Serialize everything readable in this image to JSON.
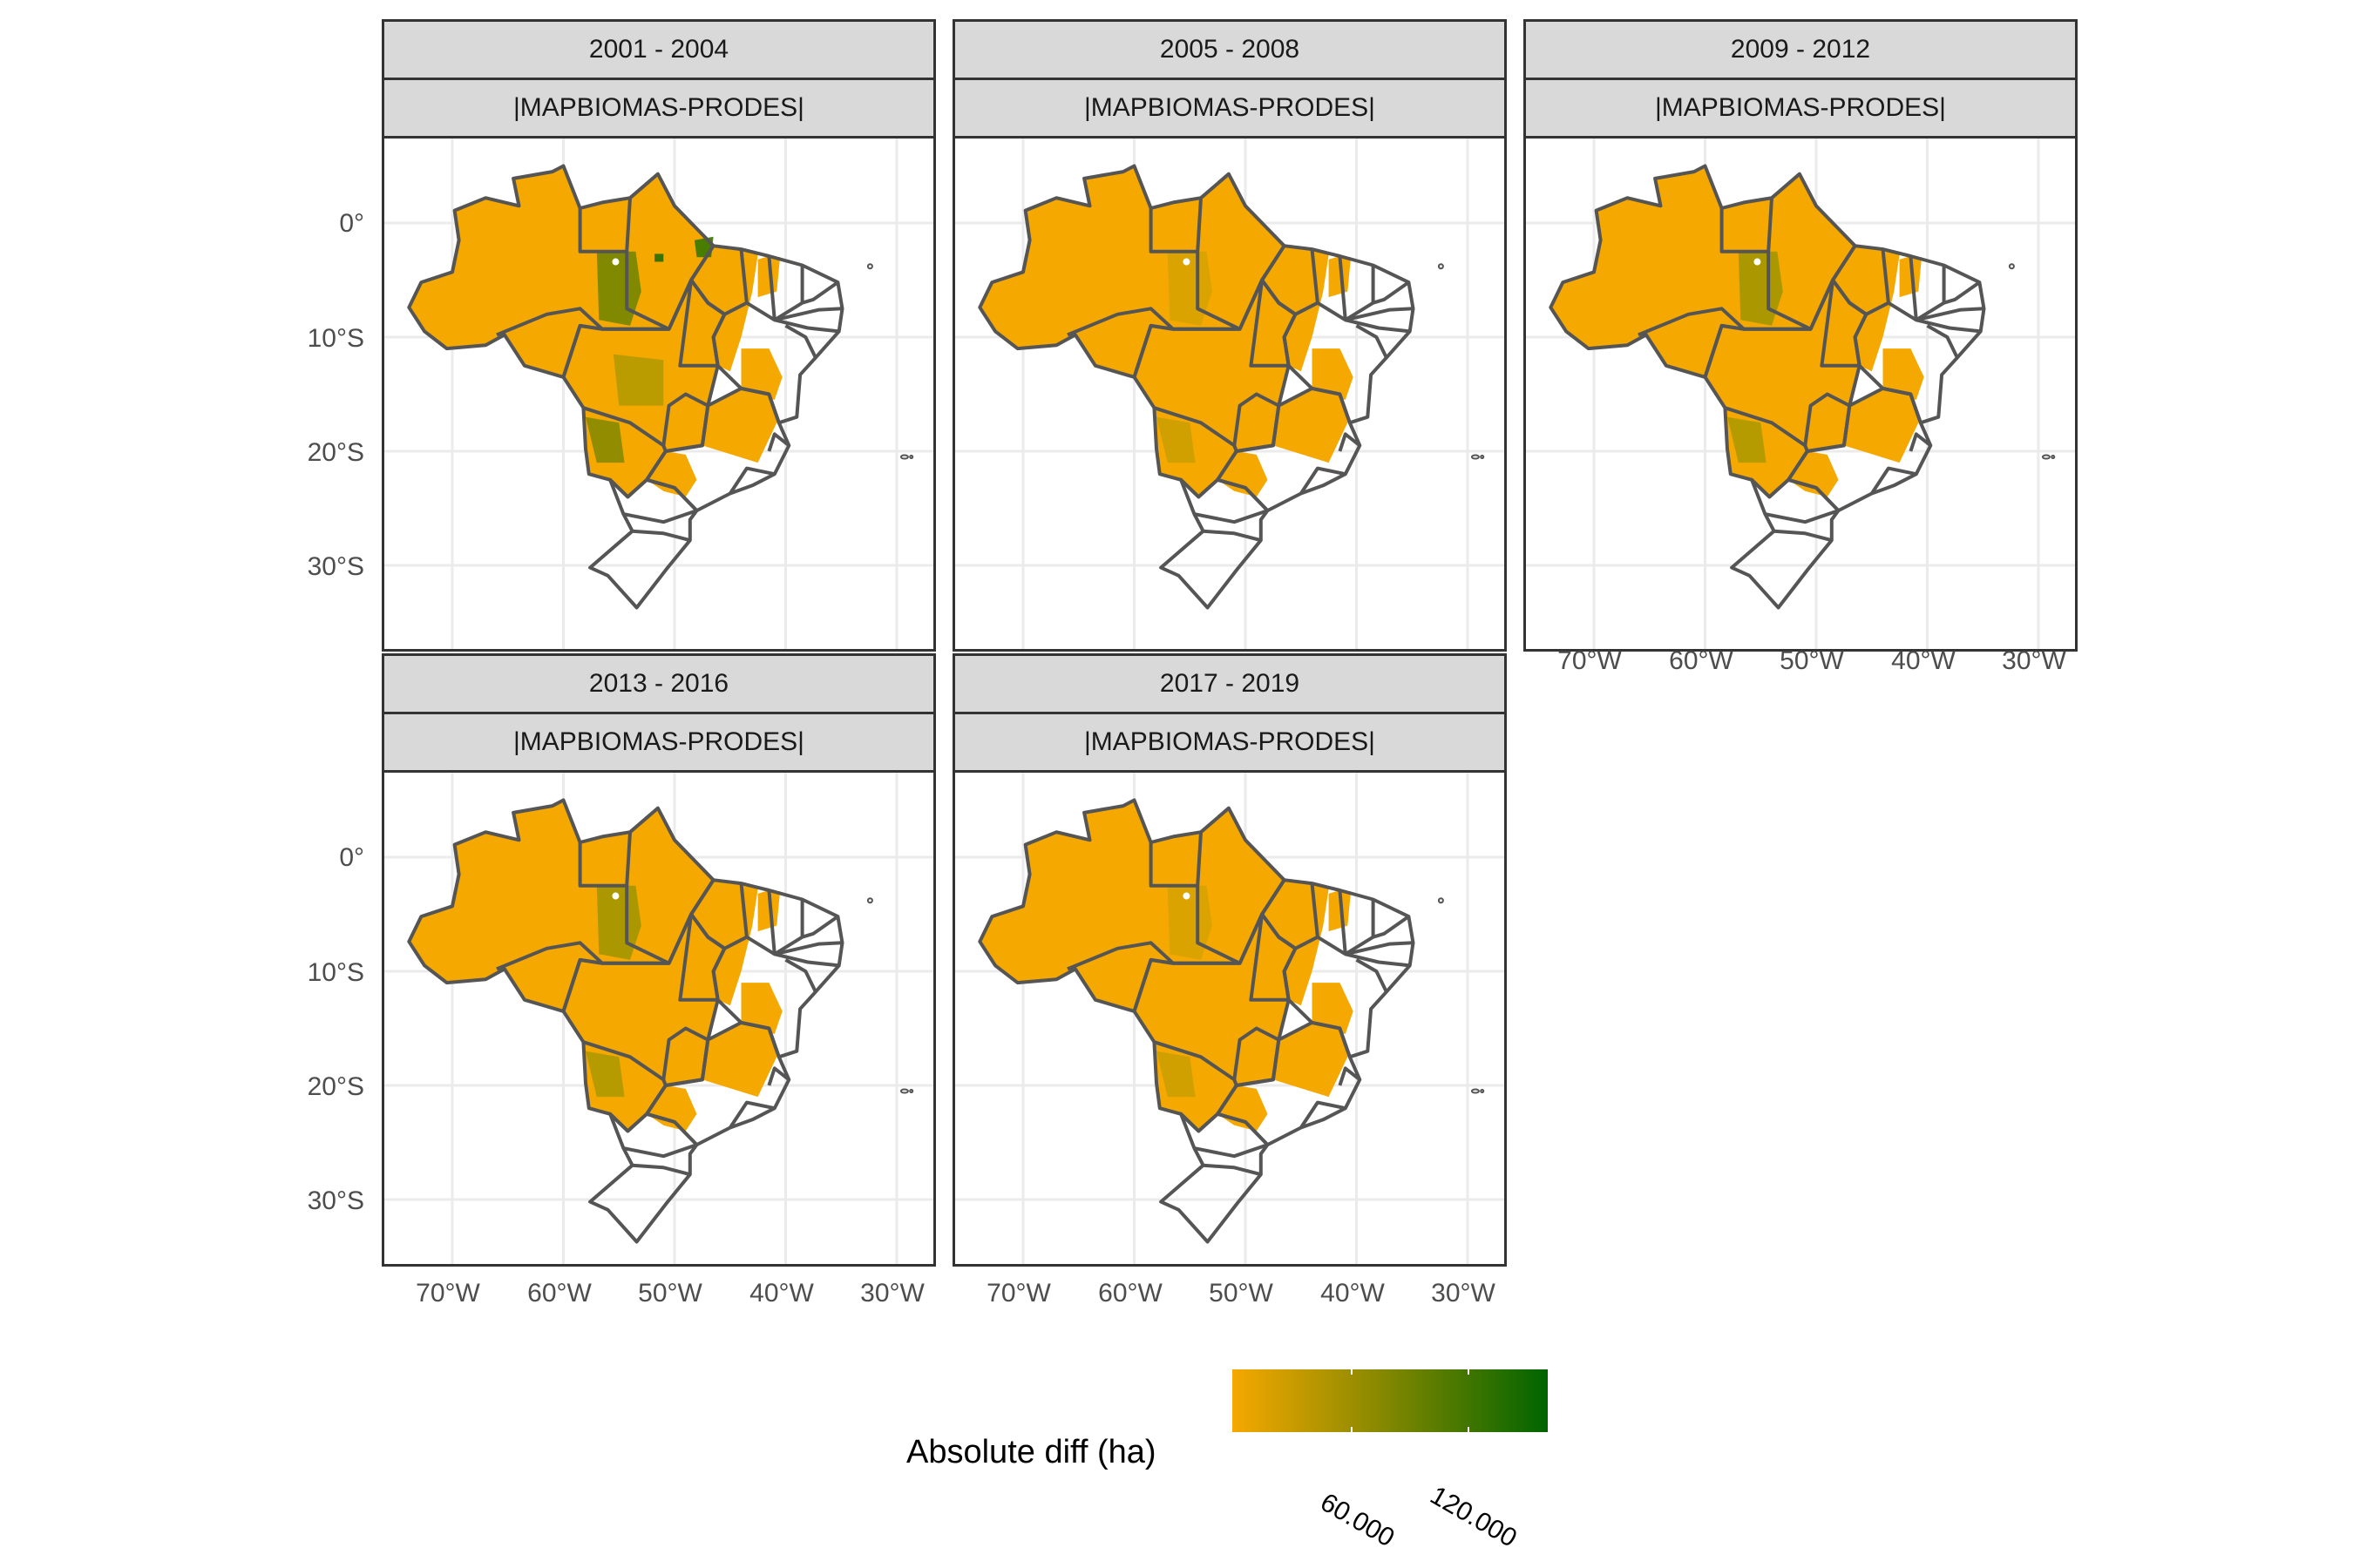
{
  "legend": {
    "title": "Absolute diff (ha)",
    "labels": [
      "60.000",
      "120.000"
    ],
    "color_low": "#F5A800",
    "color_mid": "#6F7F00",
    "color_high": "#006400"
  },
  "axes": {
    "y_ticks": [
      "0°",
      "10°S",
      "20°S",
      "30°S"
    ],
    "x_ticks": [
      "70°W",
      "60°W",
      "50°W",
      "40°W",
      "30°W"
    ]
  },
  "facets": [
    {
      "period": "2001 - 2004",
      "subtitle": "|MAPBIOMAS-PRODES|",
      "green_level": "high"
    },
    {
      "period": "2005 - 2008",
      "subtitle": "|MAPBIOMAS-PRODES|",
      "green_level": "low"
    },
    {
      "period": "2009 - 2012",
      "subtitle": "|MAPBIOMAS-PRODES|",
      "green_level": "medium"
    },
    {
      "period": "2013 - 2016",
      "subtitle": "|MAPBIOMAS-PRODES|",
      "green_level": "medium"
    },
    {
      "period": "2017 - 2019",
      "subtitle": "|MAPBIOMAS-PRODES|",
      "green_level": "low"
    }
  ],
  "colors": {
    "fill_orange": "#F5A800",
    "fill_dark": "#8C8A00",
    "fill_green": "#3E7A00",
    "border": "#555555",
    "grid": "#ebebeb"
  }
}
